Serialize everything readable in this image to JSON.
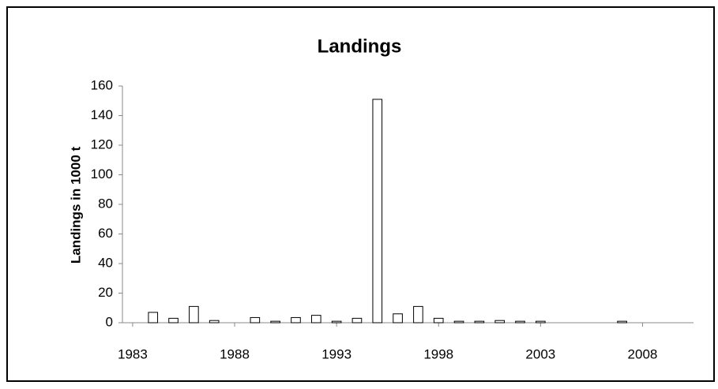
{
  "chart_data": {
    "type": "bar",
    "title": "Landings",
    "y_label": "Landings in 1000 t",
    "x": [
      1983,
      1984,
      1985,
      1986,
      1987,
      1988,
      1989,
      1990,
      1991,
      1992,
      1993,
      1994,
      1995,
      1996,
      1997,
      1998,
      1999,
      2000,
      2001,
      2002,
      2003,
      2004,
      2005,
      2006,
      2007,
      2008,
      2009,
      2010
    ],
    "values": [
      0,
      7,
      3,
      11,
      1.5,
      0,
      3.5,
      1,
      3.5,
      5,
      1,
      3,
      151,
      6,
      11,
      3,
      1,
      1,
      1.5,
      1,
      1,
      0,
      0,
      0,
      1,
      0,
      0,
      0
    ],
    "color": "#ffffff",
    "xlim": [
      1982.5,
      2010.5
    ],
    "xticks": [
      1983,
      1988,
      1993,
      1998,
      2003,
      2008
    ],
    "ylim": [
      0,
      160
    ],
    "yticks": [
      0,
      20,
      40,
      60,
      80,
      100,
      120,
      140,
      160
    ],
    "grid": false
  }
}
